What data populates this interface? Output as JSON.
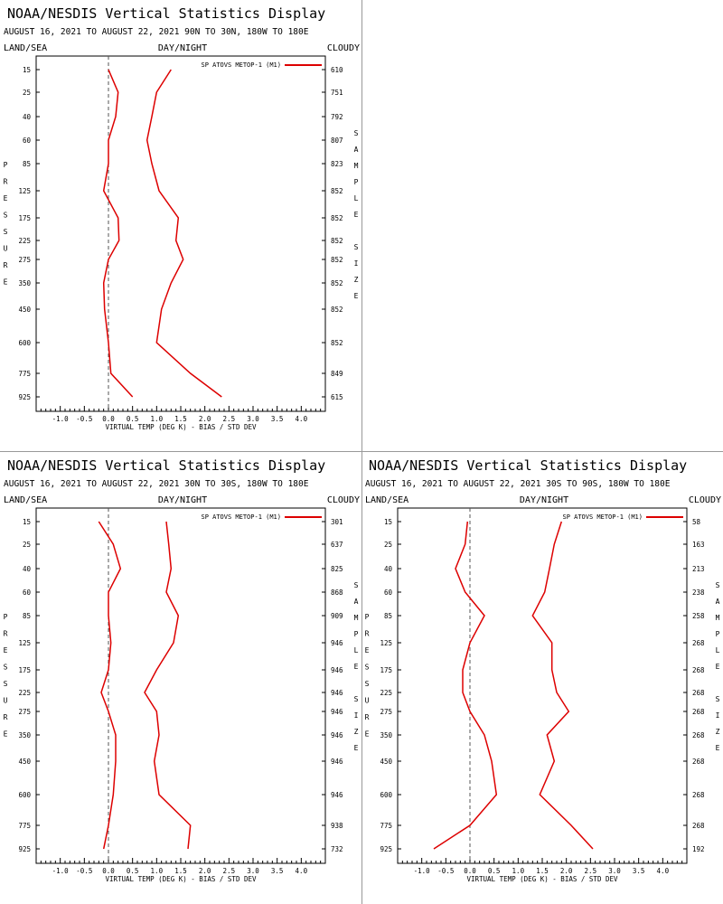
{
  "panel_texts": {
    "p1": {
      "title": "NOAA/NESDIS Vertical Statistics Display",
      "subtitle": "AUGUST 16, 2021 TO AUGUST 22, 2021 90N TO 30N, 180W TO 180E",
      "land_sea": "LAND/SEA",
      "day_night": "DAY/NIGHT",
      "cloudy": "CLOUDY",
      "xlabel": "VIRTUAL TEMP (DEG K) - BIAS / STD DEV",
      "left_vertical": "PRESSURE",
      "right_vertical": "SAMPLE SIZE",
      "legend": "SP ATOVS METOP-1 (M1)"
    },
    "p2": {
      "title": "NOAA/NESDIS Vertical Statistics Display",
      "subtitle": "AUGUST 16, 2021 TO AUGUST 22, 2021 30N TO 30S, 180W TO 180E",
      "land_sea": "LAND/SEA",
      "day_night": "DAY/NIGHT",
      "cloudy": "CLOUDY",
      "xlabel": "VIRTUAL TEMP (DEG K) - BIAS / STD DEV",
      "left_vertical": "PRESSURE",
      "right_vertical": "SAMPLE SIZE",
      "legend": "SP ATOVS METOP-1 (M1)"
    },
    "p3": {
      "title": "NOAA/NESDIS Vertical Statistics Display",
      "subtitle": "AUGUST 16, 2021 TO AUGUST 22, 2021 30S TO 90S, 180W TO 180E",
      "land_sea": "LAND/SEA",
      "day_night": "DAY/NIGHT",
      "cloudy": "CLOUDY",
      "xlabel": "VIRTUAL TEMP (DEG K) - BIAS / STD DEV",
      "left_vertical": "PRESSURE",
      "right_vertical": "SAMPLE SIZE",
      "legend": "SP ATOVS METOP-1 (M1)"
    }
  },
  "colors": {
    "series": "#dd0000",
    "zero_line": "#555555",
    "axis": "#000000"
  },
  "chart_data": [
    {
      "type": "line",
      "title": "NOAA/NESDIS Vertical Statistics Display",
      "xlabel": "VIRTUAL TEMP (DEG K) - BIAS / STD DEV",
      "ylabel": "PRESSURE",
      "xlim": [
        -1.5,
        4.5
      ],
      "x_ticks": [
        "-1.0",
        "-0.5",
        "0.0",
        "0.5",
        "1.0",
        "1.5",
        "2.0",
        "2.5",
        "3.0",
        "3.5",
        "4.0"
      ],
      "pressure_levels": [
        "15",
        "25",
        "40",
        "60",
        "85",
        "125",
        "175",
        "225",
        "275",
        "350",
        "450",
        "600",
        "775",
        "925"
      ],
      "sample_sizes": [
        "610",
        "751",
        "792",
        "807",
        "823",
        "852",
        "852",
        "852",
        "852",
        "852",
        "852",
        "852",
        "849",
        "615"
      ],
      "series": [
        {
          "name": "SP ATOVS METOP-1 (M1)",
          "values_bias": [
            0.0,
            0.2,
            0.15,
            0.0,
            0.0,
            -0.1,
            0.2,
            0.22,
            0.0,
            -0.1,
            -0.08,
            0.0,
            0.05,
            0.5
          ],
          "values_std": [
            1.3,
            1.0,
            0.9,
            0.8,
            0.9,
            1.05,
            1.45,
            1.4,
            1.55,
            1.3,
            1.1,
            1.0,
            1.7,
            2.35
          ]
        }
      ]
    },
    {
      "type": "line",
      "title": "NOAA/NESDIS Vertical Statistics Display",
      "xlabel": "VIRTUAL TEMP (DEG K) - BIAS / STD DEV",
      "ylabel": "PRESSURE",
      "xlim": [
        -1.5,
        4.5
      ],
      "x_ticks": [
        "-1.0",
        "-0.5",
        "0.0",
        "0.5",
        "1.0",
        "1.5",
        "2.0",
        "2.5",
        "3.0",
        "3.5",
        "4.0"
      ],
      "pressure_levels": [
        "15",
        "25",
        "40",
        "60",
        "85",
        "125",
        "175",
        "225",
        "275",
        "350",
        "450",
        "600",
        "775",
        "925"
      ],
      "sample_sizes": [
        "301",
        "637",
        "825",
        "868",
        "909",
        "946",
        "946",
        "946",
        "946",
        "946",
        "946",
        "946",
        "938",
        "732"
      ],
      "series": [
        {
          "name": "SP ATOVS METOP-1 (M1)",
          "values_bias": [
            -0.2,
            0.1,
            0.25,
            0.0,
            0.0,
            0.05,
            0.0,
            -0.15,
            0.0,
            0.15,
            0.15,
            0.1,
            0.0,
            -0.1
          ],
          "values_std": [
            1.2,
            1.25,
            1.3,
            1.2,
            1.45,
            1.35,
            1.0,
            0.75,
            1.0,
            1.05,
            0.95,
            1.05,
            1.7,
            1.65
          ]
        }
      ]
    },
    {
      "type": "line",
      "title": "NOAA/NESDIS Vertical Statistics Display",
      "xlabel": "VIRTUAL TEMP (DEG K) - BIAS / STD DEV",
      "ylabel": "PRESSURE",
      "xlim": [
        -1.5,
        4.5
      ],
      "x_ticks": [
        "-1.0",
        "-0.5",
        "0.0",
        "0.5",
        "1.0",
        "1.5",
        "2.0",
        "2.5",
        "3.0",
        "3.5",
        "4.0"
      ],
      "pressure_levels": [
        "15",
        "25",
        "40",
        "60",
        "85",
        "125",
        "175",
        "225",
        "275",
        "350",
        "450",
        "600",
        "775",
        "925"
      ],
      "sample_sizes": [
        "58",
        "163",
        "213",
        "238",
        "258",
        "268",
        "268",
        "268",
        "268",
        "268",
        "268",
        "268",
        "268",
        "192"
      ],
      "series": [
        {
          "name": "SP ATOVS METOP-1 (M1)",
          "values_bias": [
            -0.05,
            -0.1,
            -0.3,
            -0.1,
            0.3,
            0.0,
            -0.15,
            -0.15,
            0.0,
            0.3,
            0.45,
            0.55,
            0.0,
            -0.75
          ],
          "values_std": [
            1.9,
            1.75,
            1.65,
            1.55,
            1.3,
            1.7,
            1.7,
            1.8,
            2.05,
            1.6,
            1.75,
            1.45,
            2.1,
            2.55
          ]
        }
      ]
    }
  ]
}
